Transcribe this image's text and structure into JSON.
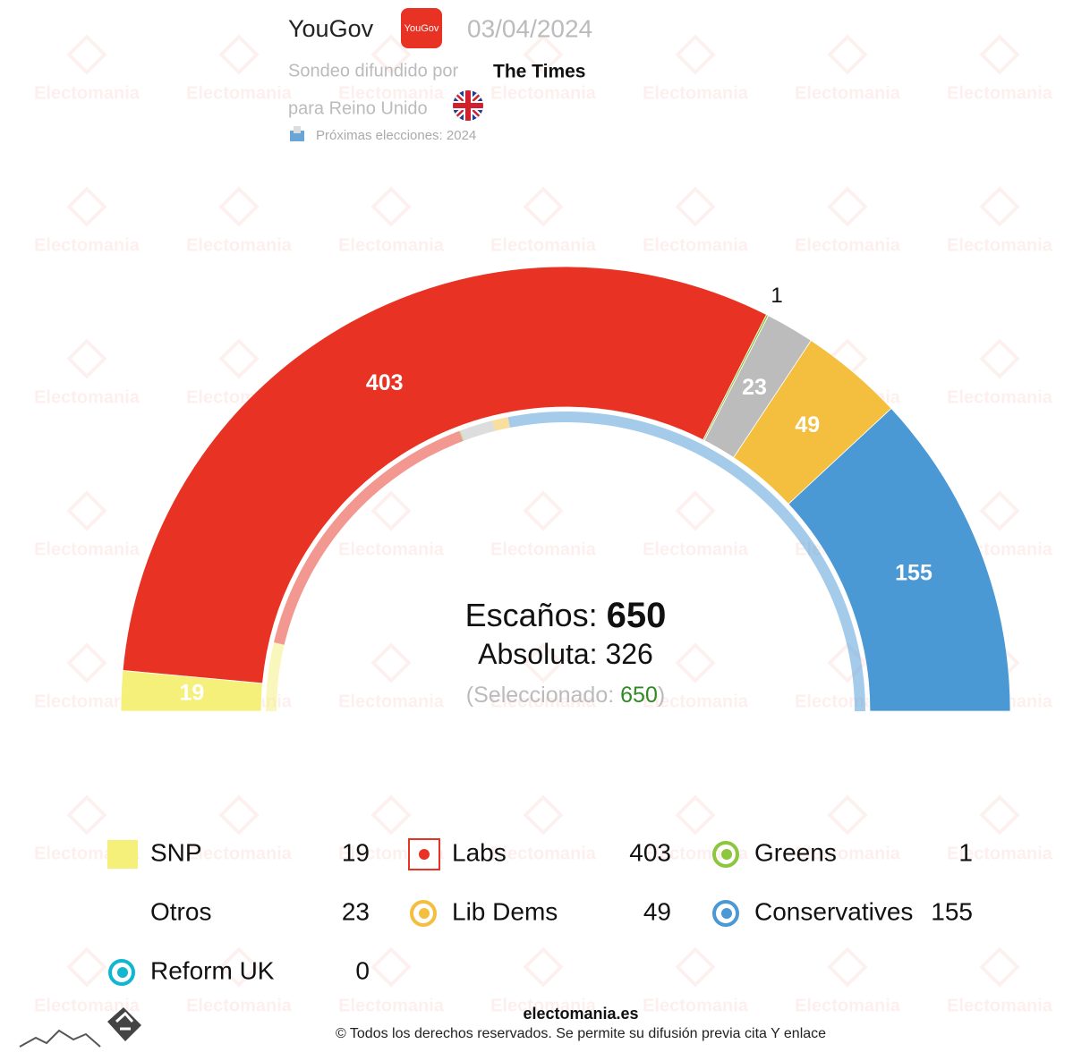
{
  "header": {
    "pollster": "YouGov",
    "logo_text": "YouGov",
    "date": "03/04/2024",
    "published_by_label": "Sondeo difundido por",
    "published_by": "The Times",
    "region": "para Reino Unido",
    "next_election": "Próximas elecciones: 2024"
  },
  "watermark": "Electomania",
  "chart_data": {
    "type": "semicircle",
    "total_label": "Escaños:",
    "total": 650,
    "majority_label": "Absoluta:",
    "majority": 326,
    "selected_label": "(Seleccionado:",
    "selected": 650,
    "selected_close": ")",
    "series": [
      {
        "name": "SNP",
        "color": "#f5f07a",
        "values": [
          19
        ],
        "previous": 48
      },
      {
        "name": "Labs",
        "color": "#e83224",
        "values": [
          403
        ],
        "previous": 202
      },
      {
        "name": "Greens",
        "color": "#8dc63f",
        "values": [
          1
        ],
        "previous": 1
      },
      {
        "name": "Otros",
        "color": "#bcbcbc",
        "values": [
          23
        ],
        "previous": 23
      },
      {
        "name": "Lib Dems",
        "color": "#f4bf3f",
        "values": [
          49
        ],
        "previous": 11
      },
      {
        "name": "Conservatives",
        "color": "#4a98d4",
        "values": [
          155
        ],
        "previous": 365
      },
      {
        "name": "Reform UK",
        "color": "#12b6cf",
        "values": [
          0
        ],
        "previous": 0
      }
    ]
  },
  "footer": {
    "site": "electomania.es",
    "copyright": "© Todos los derechos reservados. Se permite su difusión previa cita Y enlace"
  }
}
